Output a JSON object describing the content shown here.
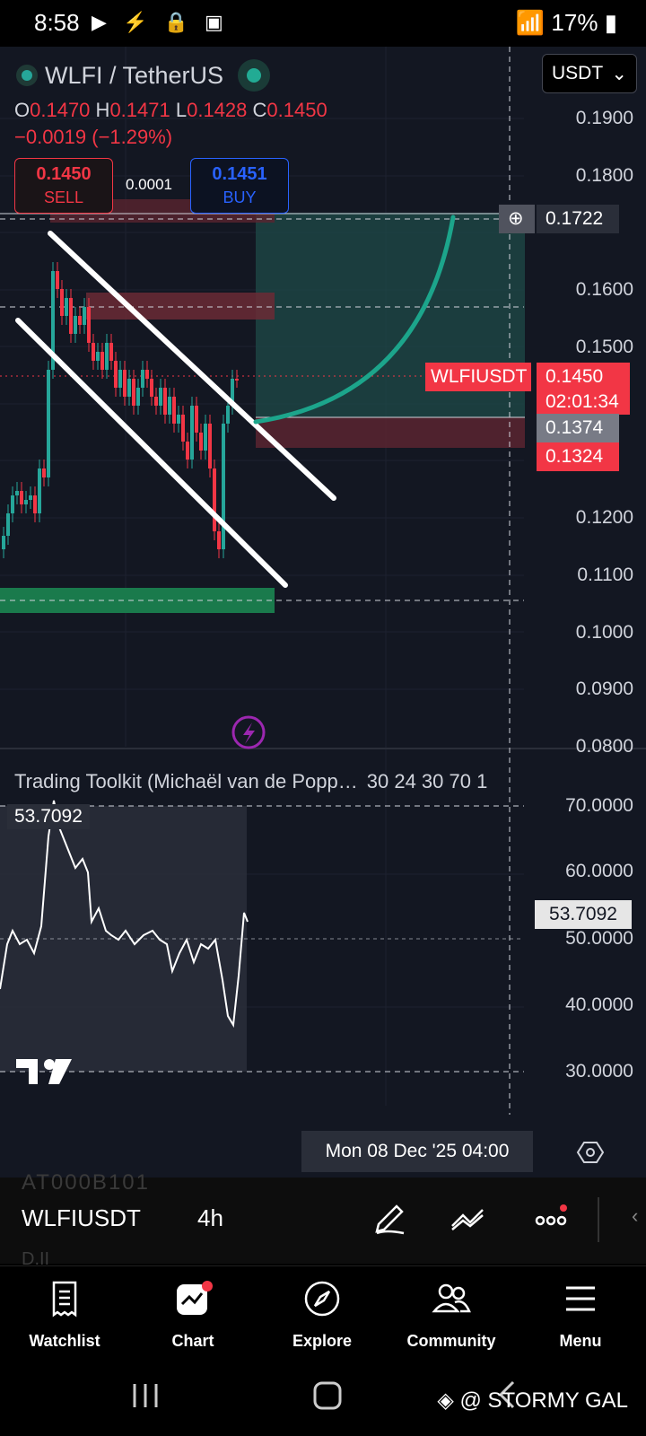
{
  "status_bar": {
    "time": "8:58",
    "battery": "17%"
  },
  "header": {
    "symbol_title": "WLFI / TetherUS",
    "currency": "USDT",
    "ohlc": {
      "o_label": "O",
      "o": "0.1470",
      "h_label": "H",
      "h": "0.1471",
      "l_label": "L",
      "l": "0.1428",
      "c_label": "C",
      "c": "0.1450"
    },
    "change": "−0.0019 (−1.29%)",
    "sell_price": "0.1450",
    "sell_label": "SELL",
    "spread": "0.0001",
    "buy_price": "0.1451",
    "buy_label": "BUY"
  },
  "price_axis": [
    "0.1900",
    "0.1800",
    "0.1600",
    "0.1500",
    "0.1200",
    "0.1100",
    "0.1000",
    "0.0900",
    "0.0800"
  ],
  "price_tags": {
    "target": "0.1722",
    "symbol": "WLFIUSDT",
    "current": "0.1450",
    "countdown": "02:01:34",
    "entry": "0.1374",
    "stop": "0.1324"
  },
  "indicator": {
    "title": "Trading Toolkit (Michaël van de Popp…",
    "params": "30 24 30 70 1",
    "value": "53.7092",
    "axis": [
      "70.0000",
      "60.0000",
      "50.0000",
      "40.0000",
      "30.0000"
    ],
    "value_tag": "53.7092"
  },
  "crosshair_time": "Mon 08 Dec '25   04:00",
  "toolbar": {
    "symbol": "WLFIUSDT",
    "timeframe": "4h",
    "ghost_top": "AT000B101",
    "ghost_bottom": "D.II"
  },
  "nav": [
    {
      "label": "Watchlist"
    },
    {
      "label": "Chart"
    },
    {
      "label": "Explore"
    },
    {
      "label": "Community"
    },
    {
      "label": "Menu"
    }
  ],
  "watermark": "@ STORMY GAL",
  "colors": {
    "up": "#26a69a",
    "down": "#f23645",
    "bg": "#131722"
  }
}
